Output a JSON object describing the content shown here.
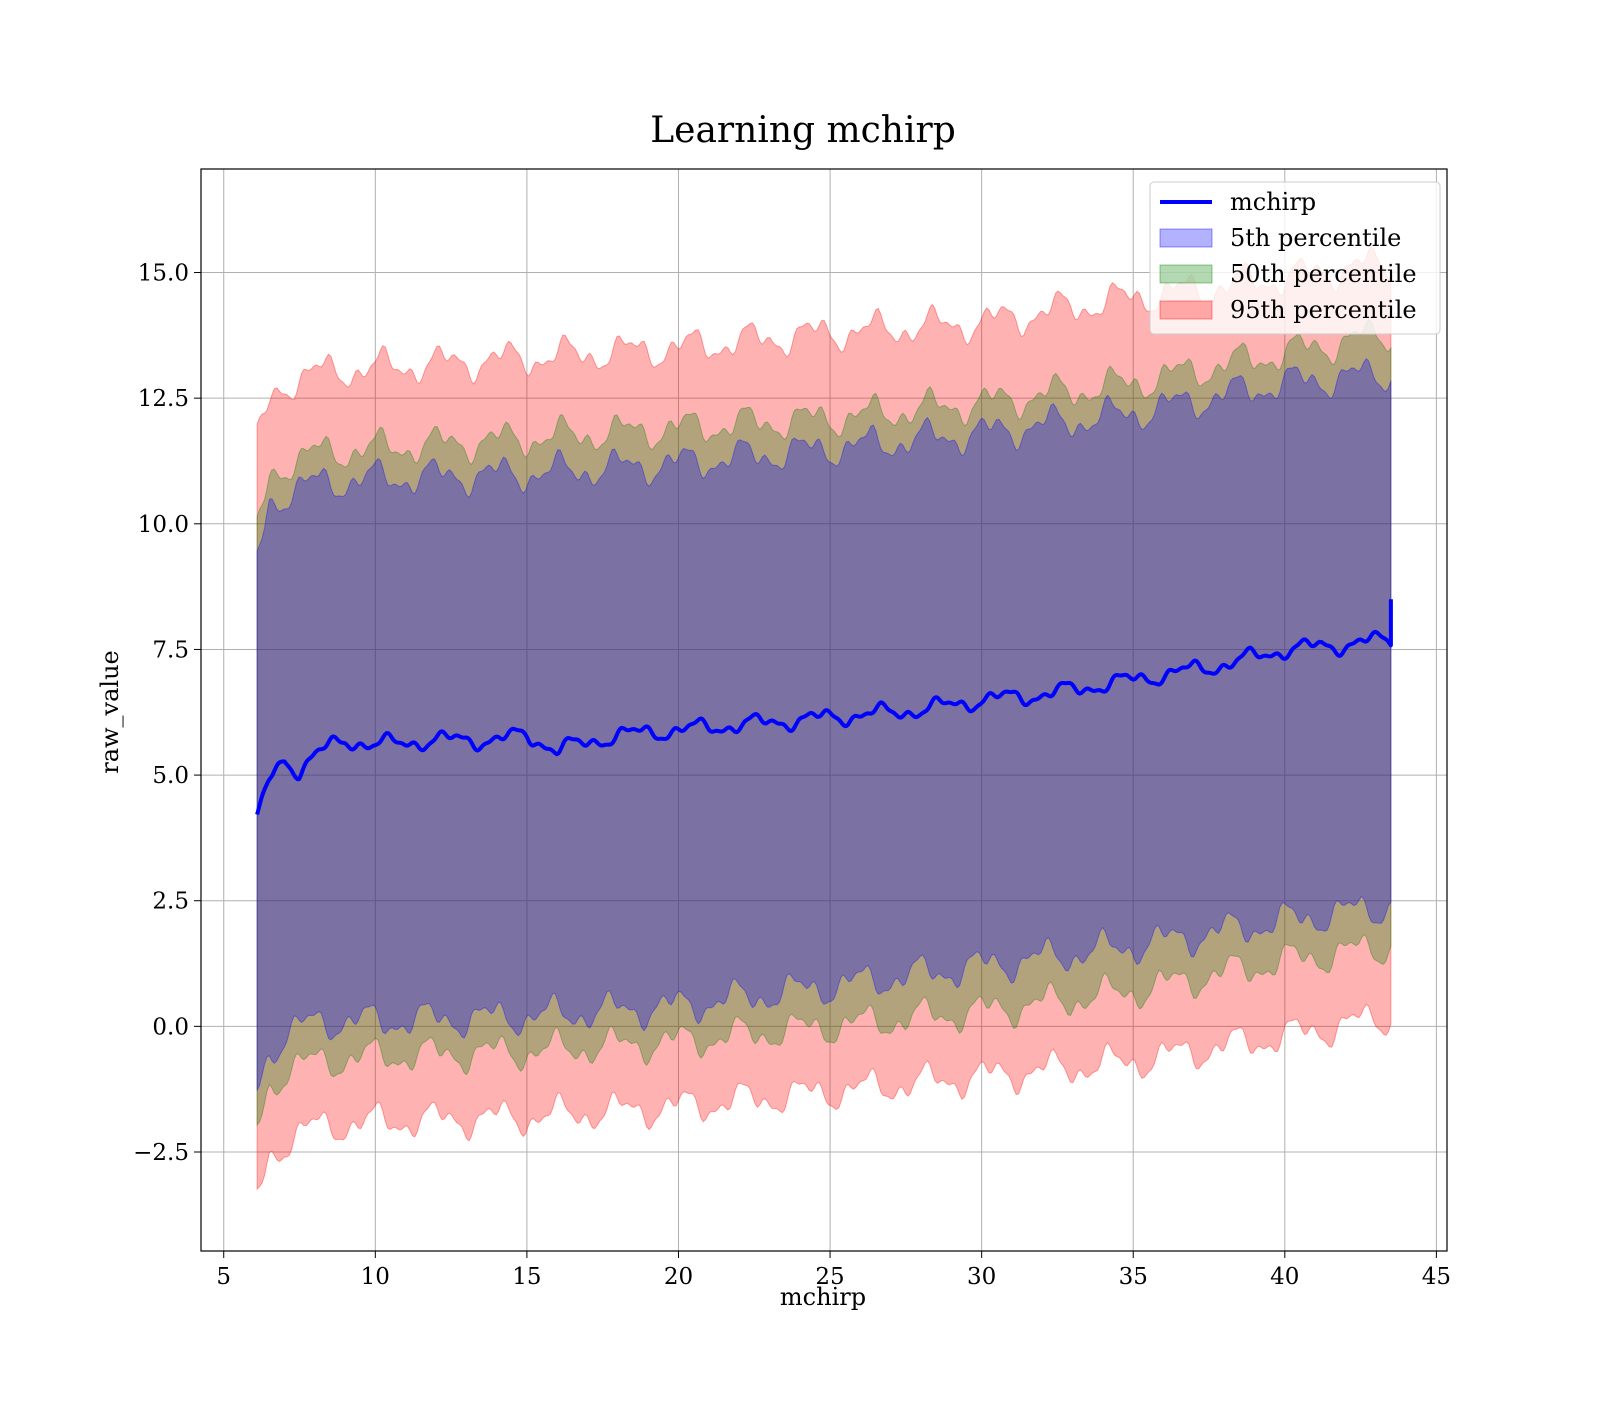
{
  "chart_data": {
    "type": "area",
    "title": "Learning mchirp",
    "xlabel": "mchirp",
    "ylabel": "raw_value",
    "xlim": [
      4.25,
      45.35
    ],
    "ylim": [
      -4.47,
      17.06
    ],
    "xticks": [
      5,
      10,
      15,
      20,
      25,
      30,
      35,
      40,
      45
    ],
    "xtick_labels": [
      "5",
      "10",
      "15",
      "20",
      "25",
      "30",
      "35",
      "40",
      "45"
    ],
    "yticks": [
      -2.5,
      0.0,
      2.5,
      5.0,
      7.5,
      10.0,
      12.5,
      15.0
    ],
    "ytick_labels": [
      "−2.5",
      "0.0",
      "2.5",
      "5.0",
      "7.5",
      "10.0",
      "12.5",
      "15.0"
    ],
    "grid": true,
    "legend_position": "top-right",
    "line": {
      "name": "mchirp",
      "color": "#0000ff",
      "x": [
        6.1,
        6.5,
        7.0,
        7.5,
        8.0,
        9.0,
        10.0,
        12.0,
        14.0,
        15.0,
        16.0,
        18.0,
        20.0,
        22.0,
        24.0,
        26.0,
        28.0,
        30.0,
        32.0,
        34.0,
        36.0,
        38.0,
        40.0,
        42.0,
        43.5
      ],
      "y": [
        4.1,
        4.9,
        5.3,
        5.1,
        5.4,
        5.7,
        5.6,
        5.7,
        5.7,
        5.8,
        5.5,
        5.8,
        5.9,
        6.0,
        6.1,
        6.2,
        6.3,
        6.5,
        6.6,
        6.8,
        7.0,
        7.2,
        7.5,
        7.6,
        7.7
      ]
    },
    "bands": [
      {
        "name": "95th percentile",
        "color": "#ff0000",
        "opacity": 0.3,
        "x": [
          6.1,
          6.5,
          7.0,
          8.0,
          10.0,
          15.0,
          20.0,
          25.0,
          30.0,
          35.0,
          40.0,
          43.5
        ],
        "lower": [
          -3.4,
          -2.6,
          -2.3,
          -2.0,
          -1.9,
          -1.8,
          -1.6,
          -1.3,
          -1.0,
          -0.7,
          -0.2,
          0.2
        ],
        "upper": [
          11.7,
          12.4,
          12.8,
          13.0,
          13.1,
          13.3,
          13.5,
          13.8,
          14.0,
          14.5,
          14.9,
          15.2
        ]
      },
      {
        "name": "50th percentile",
        "color": "#008000",
        "opacity": 0.3,
        "x": [
          6.1,
          6.5,
          7.0,
          8.0,
          10.0,
          15.0,
          20.0,
          25.0,
          30.0,
          35.0,
          40.0,
          43.5
        ],
        "lower": [
          -2.0,
          -1.2,
          -0.9,
          -0.7,
          -0.6,
          -0.5,
          -0.3,
          0.0,
          0.3,
          0.7,
          1.3,
          1.6
        ],
        "upper": [
          9.9,
          10.9,
          11.2,
          11.4,
          11.5,
          11.7,
          11.9,
          12.1,
          12.4,
          12.8,
          13.4,
          13.8
        ]
      },
      {
        "name": "5th percentile",
        "color": "#0000ff",
        "opacity": 0.3,
        "x": [
          6.1,
          6.5,
          7.0,
          8.0,
          10.0,
          15.0,
          20.0,
          25.0,
          30.0,
          35.0,
          40.0,
          43.5
        ],
        "lower": [
          -1.2,
          -0.5,
          -0.2,
          0.1,
          0.1,
          0.2,
          0.4,
          0.8,
          1.2,
          1.6,
          2.1,
          2.4
        ],
        "upper": [
          9.3,
          10.4,
          10.6,
          10.8,
          10.9,
          11.0,
          11.2,
          11.5,
          11.8,
          12.2,
          12.8,
          13.0
        ]
      }
    ],
    "legend": [
      {
        "label": "mchirp",
        "kind": "line",
        "color": "#0000ff"
      },
      {
        "label": "5th percentile",
        "kind": "patch",
        "color": "#0000ff"
      },
      {
        "label": "50th percentile",
        "kind": "patch",
        "color": "#008000"
      },
      {
        "label": "95th percentile",
        "kind": "patch",
        "color": "#ff0000"
      }
    ]
  }
}
